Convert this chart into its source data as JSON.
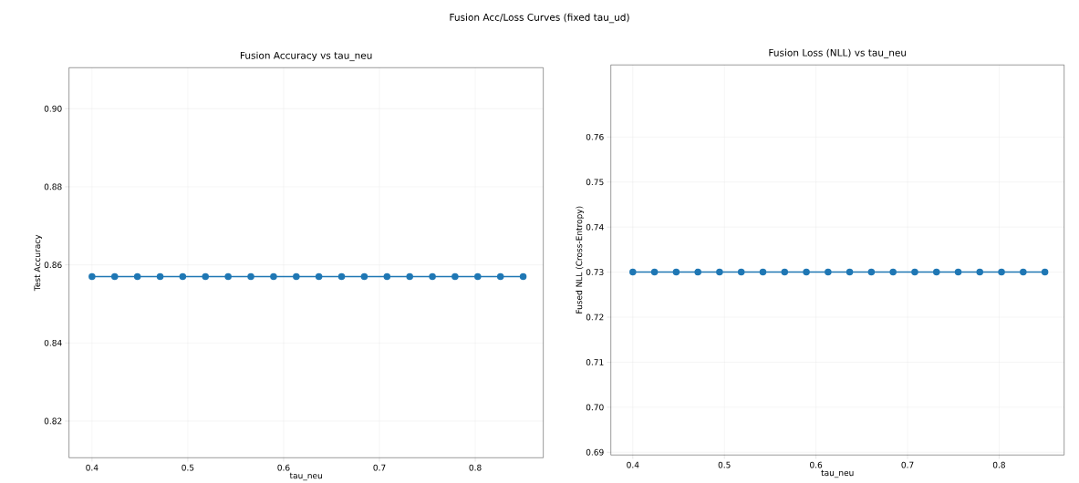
{
  "chart_data": [
    {
      "type": "line",
      "title": "Fusion Accuracy vs tau_neu",
      "xlabel": "tau_neu",
      "ylabel": "Test Accuracy",
      "annotations": [
        "Fusion Acc/Loss Curves (fixed tau_ud)"
      ],
      "x": [
        0.4,
        0.4237,
        0.4474,
        0.4711,
        0.4947,
        0.5184,
        0.5421,
        0.5658,
        0.5895,
        0.6132,
        0.6368,
        0.6605,
        0.6842,
        0.7079,
        0.7316,
        0.7553,
        0.7789,
        0.8026,
        0.8263,
        0.85
      ],
      "series": [
        {
          "color": "#1f77b4",
          "values": [
            0.857,
            0.857,
            0.857,
            0.857,
            0.857,
            0.857,
            0.857,
            0.857,
            0.857,
            0.857,
            0.857,
            0.857,
            0.857,
            0.857,
            0.857,
            0.857,
            0.857,
            0.857,
            0.857,
            0.857
          ]
        }
      ],
      "xlim": [
        0.376,
        0.871
      ],
      "ylim": [
        0.8106,
        0.9105
      ],
      "xticks": [
        0.4,
        0.5,
        0.6,
        0.7,
        0.8
      ],
      "yticks": [
        0.82,
        0.84,
        0.86,
        0.88,
        {
          "value": 0.9,
          "label": "0.90"
        }
      ],
      "grid": true,
      "marker": "circle",
      "line_style": "solid"
    },
    {
      "type": "line",
      "title": "Fusion Loss (NLL) vs tau_neu",
      "xlabel": "tau_neu",
      "ylabel": "Fused NLL (Cross-Entropy)",
      "x": [
        0.4,
        0.4237,
        0.4474,
        0.4711,
        0.4947,
        0.5184,
        0.5421,
        0.5658,
        0.5895,
        0.6132,
        0.6368,
        0.6605,
        0.6842,
        0.7079,
        0.7316,
        0.7553,
        0.7789,
        0.8026,
        0.8263,
        0.85
      ],
      "series": [
        {
          "color": "#1f77b4",
          "values": [
            0.73,
            0.73,
            0.73,
            0.73,
            0.73,
            0.73,
            0.73,
            0.73,
            0.73,
            0.73,
            0.73,
            0.73,
            0.73,
            0.73,
            0.73,
            0.73,
            0.73,
            0.73,
            0.73,
            0.73
          ]
        }
      ],
      "xlim": [
        0.376,
        0.871
      ],
      "ylim": [
        0.6894,
        0.776
      ],
      "xticks": [
        0.4,
        0.5,
        0.6,
        0.7,
        0.8
      ],
      "yticks": [
        {
          "value": 0.69,
          "label": "0.69"
        },
        {
          "value": 0.7,
          "label": "0.70"
        },
        0.71,
        0.72,
        0.73,
        0.74,
        0.75,
        0.76
      ],
      "grid": true,
      "marker": "circle",
      "line_style": "solid"
    }
  ]
}
